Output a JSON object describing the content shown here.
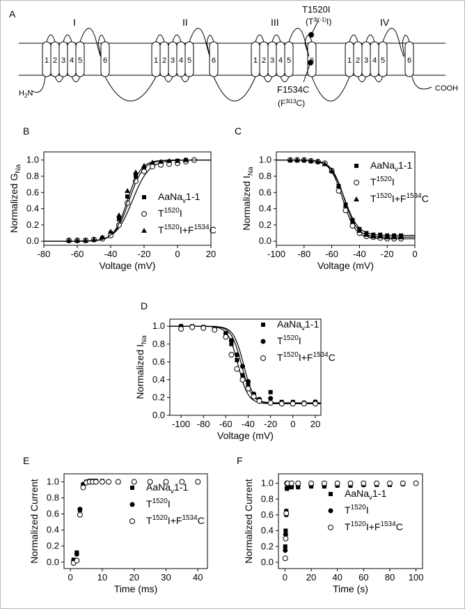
{
  "panels": {
    "a": "A",
    "b": "B",
    "c": "C",
    "d": "D",
    "e": "E",
    "f": "F"
  },
  "topology": {
    "domains": [
      "I",
      "II",
      "III",
      "IV"
    ],
    "segments": [
      "1",
      "2",
      "3",
      "4",
      "5",
      "6"
    ],
    "n_term": {
      "main": "H",
      "sub": "2",
      "tail": "N"
    },
    "c_term": "COOH",
    "mut1": {
      "label": "T1520I",
      "code_pre": "(T",
      "code_sup": "3i(-1)",
      "code_post": "I)"
    },
    "mut2": {
      "label": "F1534C",
      "code_pre": "(F",
      "code_sup": "3i13",
      "code_post": "C)"
    }
  },
  "legends": {
    "aanav": {
      "pre": "AaNa",
      "sub": "v",
      "post": "1-1"
    },
    "t1520i": {
      "pre": "T",
      "sup": "1520",
      "post": "I"
    },
    "double": {
      "pre": "T",
      "sup1": "1520",
      "mid": "I+F",
      "sup2": "1534",
      "post": "C"
    }
  },
  "chart_data": [
    {
      "id": "B",
      "type": "scatter",
      "ylabel": {
        "pre": "Normalized G",
        "sub": "Na"
      },
      "xlabel": "Voltage (mV)",
      "xlim": [
        -80,
        20
      ],
      "ylim": [
        -0.05,
        1.1
      ],
      "xticks": [
        -80,
        -60,
        -40,
        -20,
        0,
        20
      ],
      "yticks": [
        0.0,
        0.2,
        0.4,
        0.6,
        0.8,
        1.0
      ],
      "xtick_labels": [
        "-80",
        "-60",
        "-40",
        "-20",
        "0",
        "20"
      ],
      "ytick_labels": [
        "0.0",
        "0.2",
        "0.4",
        "0.6",
        "0.8",
        "1.0"
      ],
      "legend_markers": [
        "square",
        "circle-open",
        "triangle"
      ],
      "series": [
        {
          "marker": "square",
          "fit": {
            "type": "boltz_up",
            "v": -29,
            "k": 4.2
          },
          "x": [
            -65,
            -60,
            -55,
            -50,
            -45,
            -40,
            -35,
            -30,
            -25,
            -20,
            -15,
            -10,
            -5,
            0,
            5
          ],
          "y": [
            0.01,
            0.01,
            0.01,
            0.02,
            0.04,
            0.1,
            0.27,
            0.55,
            0.8,
            0.9,
            0.95,
            0.97,
            0.98,
            0.99,
            1.0
          ]
        },
        {
          "marker": "circle-open",
          "fit": {
            "type": "boltz_up",
            "v": -27,
            "k": 5.0
          },
          "x": [
            -65,
            -60,
            -55,
            -50,
            -45,
            -40,
            -35,
            -30,
            -25,
            -20,
            -15,
            -10,
            -5,
            0,
            5,
            10
          ],
          "y": [
            0.01,
            0.01,
            0.01,
            0.02,
            0.03,
            0.07,
            0.2,
            0.47,
            0.74,
            0.86,
            0.92,
            0.94,
            0.95,
            0.96,
            0.98,
            1.0
          ]
        },
        {
          "marker": "triangle",
          "fit": {
            "type": "boltz_up",
            "v": -30,
            "k": 4.0
          },
          "x": [
            -65,
            -60,
            -55,
            -50,
            -45,
            -40,
            -35,
            -30,
            -25,
            -20,
            -15,
            -10,
            -5,
            0,
            5
          ],
          "y": [
            0.01,
            0.01,
            0.01,
            0.02,
            0.05,
            0.12,
            0.32,
            0.62,
            0.85,
            0.93,
            0.97,
            0.98,
            0.99,
            0.99,
            1.0
          ]
        }
      ]
    },
    {
      "id": "C",
      "type": "scatter",
      "ylabel": {
        "pre": "Normalized I",
        "sub": "Na"
      },
      "xlabel": "Voltage (mV)",
      "xlim": [
        -100,
        0
      ],
      "ylim": [
        -0.05,
        1.1
      ],
      "xticks": [
        -100,
        -80,
        -60,
        -40,
        -20,
        0
      ],
      "yticks": [
        0.0,
        0.2,
        0.4,
        0.6,
        0.8,
        1.0
      ],
      "xtick_labels": [
        "-100",
        "-80",
        "-60",
        "-40",
        "-20",
        "0"
      ],
      "ytick_labels": [
        "0.0",
        "0.2",
        "0.4",
        "0.6",
        "0.8",
        "1.0"
      ],
      "legend_markers": [
        "square",
        "circle-open",
        "triangle"
      ],
      "series": [
        {
          "marker": "square",
          "fit": {
            "type": "boltz_down",
            "v": -51,
            "k": 5.0,
            "min": 0.07
          },
          "x": [
            -90,
            -85,
            -80,
            -75,
            -70,
            -65,
            -60,
            -55,
            -50,
            -45,
            -40,
            -35,
            -30,
            -25,
            -20,
            -15,
            -10
          ],
          "y": [
            1.0,
            1.0,
            1.0,
            0.99,
            0.98,
            0.95,
            0.86,
            0.68,
            0.45,
            0.26,
            0.15,
            0.1,
            0.08,
            0.08,
            0.07,
            0.07,
            0.07
          ]
        },
        {
          "marker": "circle-open",
          "fit": {
            "type": "boltz_down",
            "v": -52,
            "k": 4.6,
            "min": 0.03
          },
          "x": [
            -90,
            -85,
            -80,
            -75,
            -70,
            -65,
            -60,
            -55,
            -50,
            -45,
            -40,
            -35,
            -30,
            -25,
            -20,
            -15,
            -10
          ],
          "y": [
            1.0,
            1.0,
            1.0,
            0.99,
            0.98,
            0.96,
            0.87,
            0.62,
            0.38,
            0.19,
            0.1,
            0.06,
            0.05,
            0.04,
            0.03,
            0.03,
            0.03
          ]
        },
        {
          "marker": "triangle",
          "fit": {
            "type": "boltz_down",
            "v": -51,
            "k": 4.6,
            "min": 0.05
          },
          "x": [
            -90,
            -85,
            -80,
            -75,
            -70,
            -65,
            -60,
            -55,
            -50,
            -45,
            -40,
            -35,
            -30,
            -25,
            -20,
            -15,
            -10
          ],
          "y": [
            1.0,
            1.0,
            1.0,
            0.99,
            0.98,
            0.95,
            0.87,
            0.68,
            0.44,
            0.24,
            0.13,
            0.08,
            0.06,
            0.06,
            0.05,
            0.05,
            0.05
          ]
        }
      ]
    },
    {
      "id": "D",
      "type": "scatter",
      "ylabel": {
        "pre": "Normalized I",
        "sub": "Na"
      },
      "xlabel": "Voltage (mV)",
      "xlim": [
        -110,
        25
      ],
      "ylim": [
        0.0,
        1.08
      ],
      "xticks": [
        -100,
        -80,
        -60,
        -40,
        -20,
        0,
        20
      ],
      "yticks": [
        0.0,
        0.2,
        0.4,
        0.6,
        0.8,
        1.0
      ],
      "xtick_labels": [
        "-100",
        "-80",
        "-60",
        "-40",
        "-20",
        "0",
        "20"
      ],
      "ytick_labels": [
        "0.0",
        "0.2",
        "0.4",
        "0.6",
        "0.8",
        "1.0"
      ],
      "legend_markers": [
        "square",
        "circle-filled",
        "circle-open"
      ],
      "series": [
        {
          "marker": "square",
          "fit": {
            "type": "boltz_down",
            "v": -46,
            "k": 4.5,
            "min": 0.14
          },
          "x": [
            -100,
            -90,
            -80,
            -70,
            -60,
            -55,
            -50,
            -45,
            -40,
            -35,
            -30,
            -20,
            -10,
            0,
            10,
            20
          ],
          "y": [
            1.0,
            1.0,
            0.99,
            0.98,
            0.92,
            0.8,
            0.62,
            0.45,
            0.34,
            0.22,
            0.17,
            0.26,
            0.15,
            0.15,
            0.14,
            0.15
          ]
        },
        {
          "marker": "circle-filled",
          "fit": {
            "type": "boltz_down",
            "v": -44,
            "k": 4.5,
            "min": 0.13
          },
          "x": [
            -100,
            -90,
            -80,
            -70,
            -60,
            -55,
            -50,
            -45,
            -40,
            -35,
            -30,
            -20,
            -10,
            0,
            10,
            20
          ],
          "y": [
            1.0,
            0.99,
            0.99,
            0.97,
            0.92,
            0.84,
            0.68,
            0.55,
            0.38,
            0.24,
            0.18,
            0.19,
            0.14,
            0.14,
            0.14,
            0.15
          ]
        },
        {
          "marker": "circle-open",
          "fit": {
            "type": "boltz_down",
            "v": -49,
            "k": 4.5,
            "min": 0.13
          },
          "x": [
            -100,
            -90,
            -80,
            -70,
            -60,
            -55,
            -50,
            -45,
            -40,
            -35,
            -30,
            -20,
            -10,
            0,
            10,
            20
          ],
          "y": [
            0.97,
            0.99,
            0.98,
            0.96,
            0.88,
            0.68,
            0.52,
            0.4,
            0.3,
            0.21,
            0.16,
            0.14,
            0.13,
            0.13,
            0.13,
            0.13
          ]
        }
      ]
    },
    {
      "id": "E",
      "type": "scatter",
      "ylabel": {
        "pre": "Normalized Current",
        "sub": ""
      },
      "xlabel": "Time (ms)",
      "xlim": [
        -2,
        43
      ],
      "ylim": [
        -0.08,
        1.1
      ],
      "xticks": [
        0,
        10,
        20,
        30,
        40
      ],
      "yticks": [
        0.0,
        0.2,
        0.4,
        0.6,
        0.8,
        1.0
      ],
      "xtick_labels": [
        "0",
        "10",
        "20",
        "30",
        "40"
      ],
      "ytick_labels": [
        "0.0",
        "0.2",
        "0.4",
        "0.6",
        "0.8",
        "1.0"
      ],
      "legend_markers": [
        "square",
        "circle-filled",
        "circle-open"
      ],
      "series": [
        {
          "marker": "square",
          "x": [
            1,
            2,
            3,
            4,
            5,
            6,
            7,
            8,
            10,
            12,
            15,
            20,
            25,
            30,
            35,
            40
          ],
          "y": [
            0.03,
            0.12,
            0.65,
            0.96,
            1.0,
            1.01,
            1.01,
            1.01,
            1.01,
            1.0,
            1.0,
            1.0,
            1.0,
            1.0,
            1.0,
            1.0
          ]
        },
        {
          "marker": "circle-filled",
          "x": [
            1,
            2,
            3,
            4,
            5,
            6,
            7,
            8,
            10,
            12,
            15,
            20,
            25,
            30,
            35,
            40
          ],
          "y": [
            0.02,
            0.1,
            0.66,
            0.97,
            1.0,
            1.01,
            1.01,
            1.01,
            1.0,
            1.0,
            1.0,
            1.0,
            1.0,
            1.0,
            1.0,
            1.0
          ]
        },
        {
          "marker": "circle-open",
          "x": [
            1,
            2,
            3,
            4,
            5,
            6,
            7,
            8,
            10,
            12,
            15,
            20,
            25,
            30,
            35,
            40
          ],
          "y": [
            -0.01,
            0.02,
            0.59,
            0.93,
            0.99,
            1.0,
            1.0,
            1.0,
            1.0,
            1.0,
            1.0,
            1.0,
            1.0,
            1.0,
            1.0,
            1.0
          ]
        }
      ]
    },
    {
      "id": "F",
      "type": "scatter",
      "ylabel": {
        "pre": "Normalized Current",
        "sub": ""
      },
      "xlabel": "Time (s)",
      "xlim": [
        -5,
        105
      ],
      "ylim": [
        -0.08,
        1.12
      ],
      "xticks": [
        0,
        20,
        40,
        60,
        80,
        100
      ],
      "yticks": [
        0.0,
        0.2,
        0.4,
        0.6,
        0.8,
        1.0
      ],
      "xtick_labels": [
        "0",
        "20",
        "40",
        "60",
        "80",
        "100"
      ],
      "ytick_labels": [
        "0.0",
        "0.2",
        "0.4",
        "0.6",
        "0.8",
        "1.0"
      ],
      "legend_markers": [
        "square",
        "circle-filled",
        "circle-open"
      ],
      "series": [
        {
          "marker": "square",
          "x": [
            0.2,
            0.5,
            1,
            1.5,
            2,
            5,
            10,
            20,
            30,
            40,
            50,
            60,
            70,
            80,
            90,
            100
          ],
          "y": [
            0.2,
            0.4,
            0.65,
            0.93,
            0.95,
            0.95,
            0.95,
            0.96,
            0.96,
            0.97,
            0.97,
            0.98,
            0.98,
            0.98,
            0.99,
            1.0
          ]
        },
        {
          "marker": "circle-filled",
          "x": [
            0.2,
            0.5,
            1,
            1.5,
            2,
            5,
            10,
            20,
            30,
            40,
            50,
            60,
            70,
            80,
            90,
            100
          ],
          "y": [
            0.15,
            0.35,
            0.6,
            0.94,
            0.96,
            0.96,
            0.97,
            0.97,
            0.97,
            0.98,
            0.98,
            0.98,
            0.99,
            0.99,
            0.99,
            1.0
          ]
        },
        {
          "marker": "circle-open",
          "x": [
            0.2,
            0.5,
            1,
            1.5,
            2,
            5,
            10,
            20,
            30,
            40,
            50,
            60,
            70,
            80,
            90,
            100
          ],
          "y": [
            0.05,
            0.3,
            0.62,
            1.0,
            1.0,
            1.0,
            1.0,
            1.0,
            1.0,
            1.0,
            1.0,
            1.0,
            1.0,
            1.0,
            1.0,
            1.0
          ]
        }
      ]
    }
  ]
}
